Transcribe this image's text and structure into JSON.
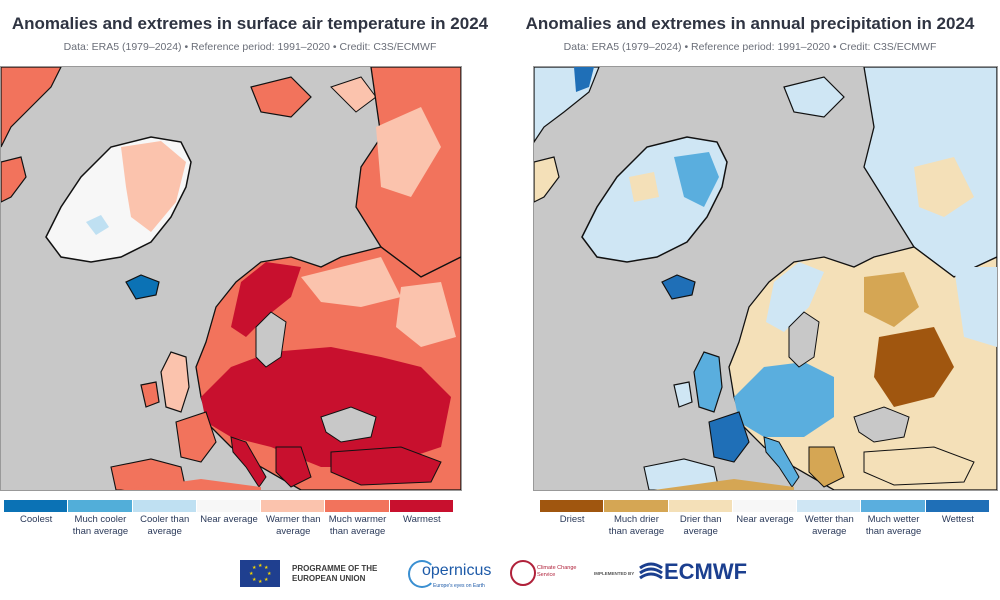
{
  "colors": {
    "ocean": "#c8c8c8",
    "coast": "#111111",
    "temp_scale": [
      "#0b72b5",
      "#52aed9",
      "#bfe0f2",
      "#f7f7f7",
      "#fbc3ad",
      "#f2735c",
      "#c8102e"
    ],
    "precip_scale": [
      "#a0560f",
      "#d5a654",
      "#f4e0b8",
      "#f7f7f7",
      "#cfe6f4",
      "#5aaede",
      "#1f6fb7"
    ]
  },
  "temperature": {
    "title": "Anomalies and extremes in surface air temperature in 2024",
    "subtitle": "Data: ERA5 (1979–2024) • Reference period: 1991–2020 • Credit: C3S/ECMWF",
    "legend": [
      "Coolest",
      "Much cooler than average",
      "Cooler than average",
      "Near average",
      "Warmer than average",
      "Much warmer than average",
      "Warmest"
    ]
  },
  "precipitation": {
    "title": "Anomalies and extremes in annual precipitation in 2024",
    "subtitle": "Data: ERA5 (1979–2024) • Reference period: 1991–2020 • Credit: C3S/ECMWF",
    "legend": [
      "Driest",
      "Much drier than average",
      "Drier than average",
      "Near average",
      "Wetter than average",
      "Much wetter than average",
      "Wettest"
    ]
  },
  "footer": {
    "eu_program": "PROGRAMME OF THE EUROPEAN UNION",
    "copernicus": "opernicus",
    "copernicus_sub": "Europe's eyes on Earth",
    "c3s": "Climate Change Service",
    "implemented_by": "IMPLEMENTED BY",
    "ecmwf": "ECMWF"
  }
}
